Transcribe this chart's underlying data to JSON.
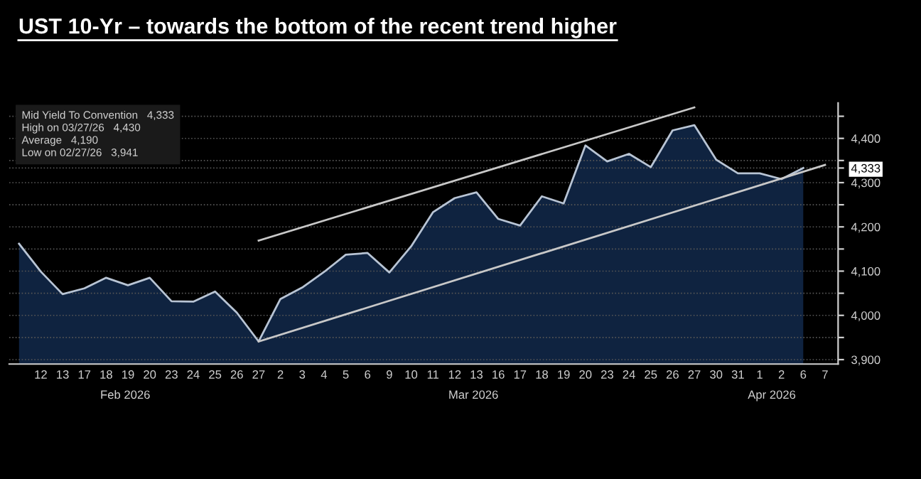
{
  "chart_data": {
    "type": "area",
    "title": "UST 10-Yr – towards the bottom of the recent trend higher",
    "categories": [
      null,
      "12",
      "13",
      "17",
      "18",
      "19",
      "20",
      "23",
      "24",
      "25",
      "26",
      "27",
      "2",
      "3",
      "4",
      "5",
      "6",
      "9",
      "10",
      "11",
      "12",
      "13",
      "16",
      "17",
      "18",
      "19",
      "20",
      "23",
      "24",
      "25",
      "26",
      "27",
      "30",
      "31",
      "1",
      "2",
      "6",
      "7"
    ],
    "series": [
      {
        "color": "#0f2340",
        "values": [
          4162,
          4099,
          4048,
          4061,
          4085,
          4068,
          4085,
          4032,
          4031,
          4054,
          4006,
          3941,
          4037,
          4063,
          4098,
          4137,
          4141,
          4097,
          4156,
          4233,
          4265,
          4278,
          4218,
          4203,
          4269,
          4253,
          4384,
          4348,
          4365,
          4335,
          4418,
          4430,
          4352,
          4321,
          4321,
          4308,
          4333,
          null
        ]
      },
      {
        "type": "line",
        "color": "#c8c8c8",
        "values": [
          null,
          null,
          null,
          null,
          null,
          null,
          null,
          null,
          null,
          null,
          null,
          3941,
          null,
          null,
          null,
          null,
          null,
          null,
          null,
          null,
          null,
          null,
          null,
          null,
          null,
          null,
          null,
          null,
          null,
          null,
          null,
          null,
          null,
          null,
          null,
          null,
          null,
          4340
        ]
      },
      {
        "type": "line",
        "color": "#c8c8c8",
        "values": [
          null,
          null,
          null,
          null,
          null,
          null,
          null,
          null,
          null,
          null,
          null,
          4169,
          null,
          null,
          null,
          null,
          null,
          null,
          null,
          null,
          null,
          null,
          null,
          null,
          null,
          null,
          null,
          null,
          null,
          null,
          null,
          4470,
          null,
          null,
          null,
          null,
          null,
          null
        ]
      }
    ],
    "ylim": [
      3890,
      4480
    ],
    "yticks": [
      {
        "value": 3900,
        "label": "3,900"
      },
      {
        "value": 3950,
        "label": null
      },
      {
        "value": 4000,
        "label": "4,000"
      },
      {
        "value": 4050,
        "label": null
      },
      {
        "value": 4100,
        "label": "4,100"
      },
      {
        "value": 4150,
        "label": null
      },
      {
        "value": 4200,
        "label": "4,200"
      },
      {
        "value": 4250,
        "label": null
      },
      {
        "value": 4300,
        "label": "4,300"
      },
      {
        "value": 4350,
        "label": null
      },
      {
        "value": 4400,
        "label": "4,400"
      },
      {
        "value": 4450,
        "label": null
      },
      {
        "value": 4333,
        "label": "4,333"
      }
    ],
    "grid": "y",
    "annotations": [
      "Mid Yield To Convention   4,333",
      "High on 03/27/26   4,430",
      "Average   4,190",
      "Low on 02/27/26   3,941",
      "Feb 2026",
      "Mar 2026",
      "Apr 2026"
    ]
  }
}
